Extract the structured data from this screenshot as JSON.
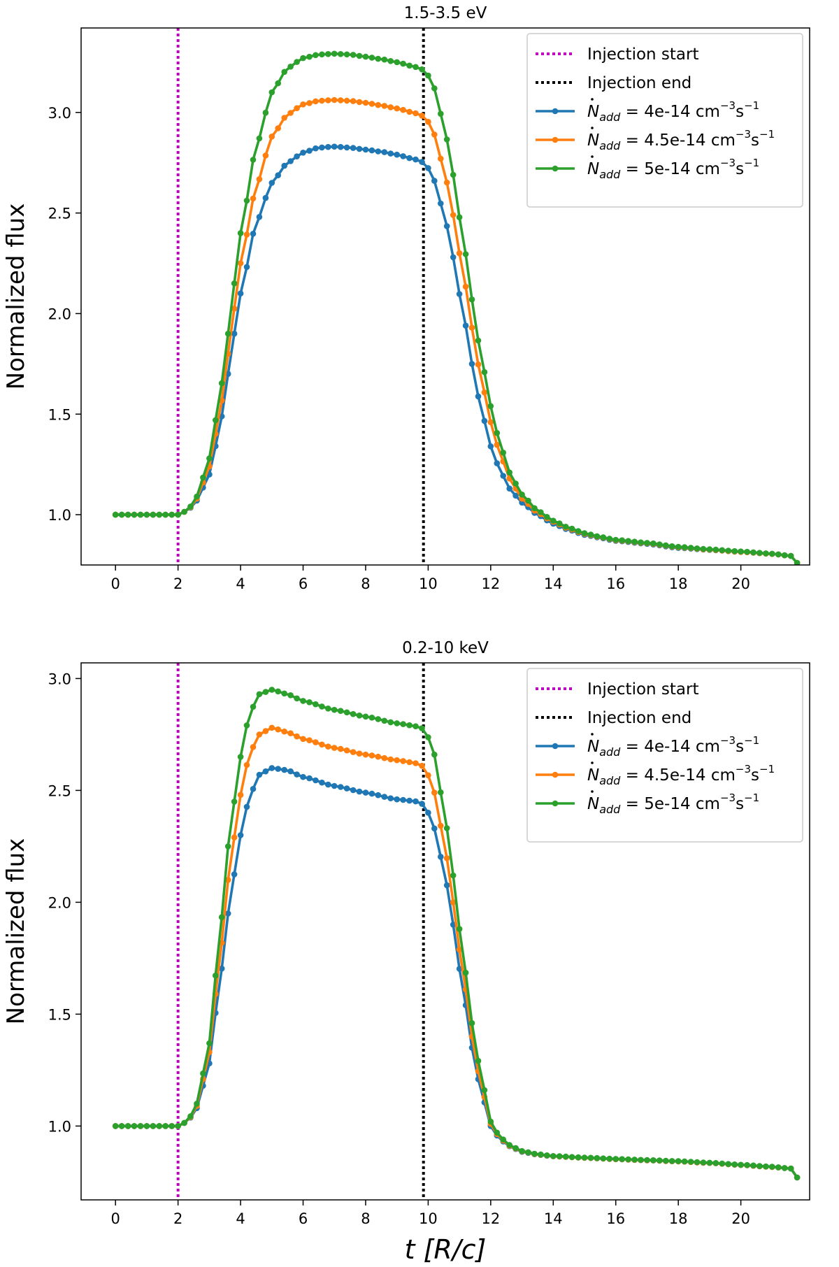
{
  "chart_data": [
    {
      "type": "line",
      "title": "1.5-3.5 eV",
      "xlabel": "",
      "ylabel": "Normalized flux",
      "xlim": [
        -1.1,
        22.2
      ],
      "ylim": [
        0.75,
        3.42
      ],
      "xticks": [
        0,
        2,
        4,
        6,
        8,
        10,
        12,
        14,
        16,
        18,
        20
      ],
      "xtick_labels": [
        "0",
        "2",
        "4",
        "6",
        "8",
        "10",
        "12",
        "14",
        "16",
        "18",
        "20"
      ],
      "yticks": [
        1.0,
        1.5,
        2.0,
        2.5,
        3.0
      ],
      "ytick_labels": [
        "1.0",
        "1.5",
        "2.0",
        "2.5",
        "3.0"
      ],
      "vlines": [
        {
          "x": 2.0,
          "color": "#bf00bf",
          "label": "Injection start"
        },
        {
          "x": 9.85,
          "color": "#000000",
          "label": "Injection end"
        }
      ],
      "legend": {
        "position": "top-right",
        "entries": [
          {
            "label": "Injection start",
            "color": "#bf00bf",
            "style": "dotted"
          },
          {
            "label": "Injection end",
            "color": "#000000",
            "style": "dotted"
          },
          {
            "label": "Ṅadd = 4e-14 cm⁻³s⁻¹",
            "color": "#1f77b4",
            "style": "line-marker",
            "rate_prefix": "= ",
            "rate_value": "4e-14 cm",
            "rate_exp": "−3",
            "rate_unit": "s",
            "rate_unit_exp": "−1"
          },
          {
            "label": "Ṅadd = 4.5e-14 cm⁻³s⁻¹",
            "color": "#ff7f0e",
            "style": "line-marker",
            "rate_prefix": "= ",
            "rate_value": "4.5e-14 cm",
            "rate_exp": "−3",
            "rate_unit": "s",
            "rate_unit_exp": "−1"
          },
          {
            "label": "Ṅadd = 5e-14 cm⁻³s⁻¹",
            "color": "#2ca02c",
            "style": "line-marker",
            "rate_prefix": "= ",
            "rate_value": "5e-14 cm",
            "rate_exp": "−3",
            "rate_unit": "s",
            "rate_unit_exp": "−1"
          }
        ],
        "symbol_main": "N",
        "symbol_sub": "add"
      },
      "series": [
        {
          "name": "Ṅadd = 4e-14 cm⁻³s⁻¹",
          "color": "#1f77b4",
          "keypoints": {
            "x": [
              0,
              1.0,
              2.0,
              2.3,
              2.6,
              3.0,
              3.3,
              3.6,
              4.0,
              4.5,
              5.0,
              5.5,
              6.0,
              6.5,
              7.0,
              7.5,
              8.0,
              8.5,
              9.0,
              9.5,
              9.9,
              10.2,
              10.5,
              10.8,
              11.1,
              11.4,
              11.7,
              12.0,
              12.3,
              12.6,
              13.0,
              13.5,
              14.0,
              14.5,
              15.0,
              15.5,
              16.0,
              17.0,
              18.0,
              19.0,
              20.0,
              21.0,
              21.6,
              21.8
            ],
            "y": [
              1.0,
              1.0,
              1.0,
              1.02,
              1.07,
              1.2,
              1.4,
              1.7,
              2.1,
              2.45,
              2.65,
              2.75,
              2.8,
              2.825,
              2.83,
              2.825,
              2.815,
              2.805,
              2.79,
              2.77,
              2.75,
              2.66,
              2.5,
              2.28,
              2.02,
              1.75,
              1.52,
              1.34,
              1.22,
              1.13,
              1.06,
              1.0,
              0.955,
              0.925,
              0.9,
              0.885,
              0.87,
              0.855,
              0.835,
              0.825,
              0.815,
              0.805,
              0.795,
              0.76
            ]
          }
        },
        {
          "name": "Ṅadd = 4.5e-14 cm⁻³s⁻¹",
          "color": "#ff7f0e",
          "keypoints": {
            "x": [
              0,
              1.0,
              2.0,
              2.3,
              2.6,
              3.0,
              3.3,
              3.6,
              4.0,
              4.5,
              5.0,
              5.5,
              6.0,
              6.5,
              7.0,
              7.5,
              8.0,
              8.5,
              9.0,
              9.5,
              9.9,
              10.2,
              10.5,
              10.8,
              11.1,
              11.4,
              11.7,
              12.0,
              12.3,
              12.6,
              13.0,
              13.5,
              14.0,
              14.5,
              15.0,
              15.5,
              16.0,
              17.0,
              18.0,
              19.0,
              20.0,
              21.0,
              21.6,
              21.8
            ],
            "y": [
              1.0,
              1.0,
              1.0,
              1.02,
              1.08,
              1.24,
              1.47,
              1.8,
              2.25,
              2.63,
              2.88,
              2.99,
              3.04,
              3.058,
              3.062,
              3.058,
              3.048,
              3.035,
              3.02,
              3.0,
              2.98,
              2.89,
              2.72,
              2.49,
              2.22,
              1.93,
              1.67,
              1.46,
              1.3,
              1.18,
              1.08,
              1.01,
              0.965,
              0.93,
              0.905,
              0.888,
              0.873,
              0.858,
              0.838,
              0.826,
              0.815,
              0.805,
              0.795,
              0.76
            ]
          }
        },
        {
          "name": "Ṅadd = 5e-14 cm⁻³s⁻¹",
          "color": "#2ca02c",
          "keypoints": {
            "x": [
              0,
              1.0,
              2.0,
              2.3,
              2.6,
              3.0,
              3.3,
              3.6,
              4.0,
              4.5,
              5.0,
              5.5,
              6.0,
              6.5,
              7.0,
              7.5,
              8.0,
              8.5,
              9.0,
              9.5,
              9.9,
              10.2,
              10.5,
              10.8,
              11.1,
              11.4,
              11.7,
              12.0,
              12.3,
              12.6,
              13.0,
              13.5,
              14.0,
              14.5,
              15.0,
              15.5,
              16.0,
              17.0,
              18.0,
              19.0,
              20.0,
              21.0,
              21.6,
              21.8
            ],
            "y": [
              1.0,
              1.0,
              1.0,
              1.02,
              1.09,
              1.28,
              1.55,
              1.9,
              2.4,
              2.83,
              3.1,
              3.22,
              3.27,
              3.288,
              3.292,
              3.288,
              3.277,
              3.265,
              3.25,
              3.23,
              3.21,
              3.12,
              2.94,
              2.69,
              2.39,
              2.07,
              1.78,
              1.54,
              1.35,
              1.21,
              1.1,
              1.02,
              0.97,
              0.935,
              0.908,
              0.89,
              0.875,
              0.86,
              0.84,
              0.828,
              0.817,
              0.806,
              0.795,
              0.76
            ]
          }
        }
      ]
    },
    {
      "type": "line",
      "title": "0.2-10 keV",
      "xlabel": "t [R/c]",
      "ylabel": "Normalized flux",
      "xlim": [
        -1.1,
        22.2
      ],
      "ylim": [
        0.67,
        3.07
      ],
      "xticks": [
        0,
        2,
        4,
        6,
        8,
        10,
        12,
        14,
        16,
        18,
        20
      ],
      "xtick_labels": [
        "0",
        "2",
        "4",
        "6",
        "8",
        "10",
        "12",
        "14",
        "16",
        "18",
        "20"
      ],
      "yticks": [
        1.0,
        1.5,
        2.0,
        2.5,
        3.0
      ],
      "ytick_labels": [
        "1.0",
        "1.5",
        "2.0",
        "2.5",
        "3.0"
      ],
      "vlines": [
        {
          "x": 2.0,
          "color": "#bf00bf",
          "label": "Injection start"
        },
        {
          "x": 9.85,
          "color": "#000000",
          "label": "Injection end"
        }
      ],
      "legend": {
        "position": "top-right",
        "entries": [
          {
            "label": "Injection start",
            "color": "#bf00bf",
            "style": "dotted"
          },
          {
            "label": "Injection end",
            "color": "#000000",
            "style": "dotted"
          },
          {
            "label": "Ṅadd = 4e-14 cm⁻³s⁻¹",
            "color": "#1f77b4",
            "style": "line-marker",
            "rate_prefix": "= ",
            "rate_value": "4e-14 cm",
            "rate_exp": "−3",
            "rate_unit": "s",
            "rate_unit_exp": "−1"
          },
          {
            "label": "Ṅadd = 4.5e-14 cm⁻³s⁻¹",
            "color": "#ff7f0e",
            "style": "line-marker",
            "rate_prefix": "= ",
            "rate_value": "4.5e-14 cm",
            "rate_exp": "−3",
            "rate_unit": "s",
            "rate_unit_exp": "−1"
          },
          {
            "label": "Ṅadd = 5e-14 cm⁻³s⁻¹",
            "color": "#2ca02c",
            "style": "line-marker",
            "rate_prefix": "= ",
            "rate_value": "5e-14 cm",
            "rate_exp": "−3",
            "rate_unit": "s",
            "rate_unit_exp": "−1"
          }
        ],
        "symbol_main": "N",
        "symbol_sub": "add"
      },
      "series": [
        {
          "name": "Ṅadd = 4e-14 cm⁻³s⁻¹",
          "color": "#1f77b4",
          "keypoints": {
            "x": [
              0,
              1.0,
              2.0,
              2.3,
              2.6,
              3.0,
              3.3,
              3.6,
              4.0,
              4.3,
              4.6,
              5.0,
              5.5,
              6.0,
              7.0,
              8.0,
              9.0,
              9.7,
              9.9,
              10.2,
              10.5,
              10.8,
              11.1,
              11.4,
              11.7,
              12.0,
              12.3,
              12.6,
              13.0,
              13.5,
              14.0,
              15.0,
              16.0,
              17.0,
              18.0,
              19.0,
              20.0,
              21.0,
              21.6,
              21.8
            ],
            "y": [
              1.0,
              1.0,
              1.0,
              1.02,
              1.08,
              1.28,
              1.6,
              1.95,
              2.3,
              2.48,
              2.57,
              2.6,
              2.59,
              2.56,
              2.52,
              2.49,
              2.46,
              2.45,
              2.43,
              2.33,
              2.15,
              1.9,
              1.62,
              1.35,
              1.15,
              1.0,
              0.94,
              0.91,
              0.885,
              0.872,
              0.865,
              0.858,
              0.852,
              0.847,
              0.842,
              0.835,
              0.826,
              0.817,
              0.81,
              0.77
            ]
          }
        },
        {
          "name": "Ṅadd = 4.5e-14 cm⁻³s⁻¹",
          "color": "#ff7f0e",
          "keypoints": {
            "x": [
              0,
              1.0,
              2.0,
              2.3,
              2.6,
              3.0,
              3.3,
              3.6,
              4.0,
              4.3,
              4.6,
              5.0,
              5.5,
              6.0,
              7.0,
              8.0,
              9.0,
              9.7,
              9.9,
              10.2,
              10.5,
              10.8,
              11.1,
              11.4,
              11.7,
              12.0,
              12.3,
              12.6,
              13.0,
              13.5,
              14.0,
              15.0,
              16.0,
              17.0,
              18.0,
              19.0,
              20.0,
              21.0,
              21.6,
              21.8
            ],
            "y": [
              1.0,
              1.0,
              1.0,
              1.02,
              1.09,
              1.33,
              1.7,
              2.1,
              2.48,
              2.67,
              2.75,
              2.78,
              2.76,
              2.73,
              2.69,
              2.66,
              2.635,
              2.62,
              2.6,
              2.49,
              2.28,
              2.0,
              1.7,
              1.4,
              1.18,
              1.01,
              0.945,
              0.912,
              0.887,
              0.873,
              0.865,
              0.858,
              0.852,
              0.847,
              0.842,
              0.835,
              0.826,
              0.817,
              0.81,
              0.77
            ]
          }
        },
        {
          "name": "Ṅadd = 5e-14 cm⁻³s⁻¹",
          "color": "#2ca02c",
          "keypoints": {
            "x": [
              0,
              1.0,
              2.0,
              2.3,
              2.6,
              3.0,
              3.3,
              3.6,
              4.0,
              4.3,
              4.6,
              5.0,
              5.5,
              6.0,
              7.0,
              8.0,
              9.0,
              9.7,
              9.9,
              10.2,
              10.5,
              10.8,
              11.1,
              11.4,
              11.7,
              12.0,
              12.3,
              12.6,
              13.0,
              13.5,
              14.0,
              15.0,
              16.0,
              17.0,
              18.0,
              19.0,
              20.0,
              21.0,
              21.6,
              21.8
            ],
            "y": [
              1.0,
              1.0,
              1.0,
              1.02,
              1.1,
              1.37,
              1.8,
              2.25,
              2.65,
              2.85,
              2.93,
              2.95,
              2.93,
              2.9,
              2.86,
              2.83,
              2.8,
              2.785,
              2.77,
              2.66,
              2.42,
              2.12,
              1.78,
              1.46,
              1.22,
              1.02,
              0.95,
              0.915,
              0.888,
              0.874,
              0.866,
              0.859,
              0.853,
              0.848,
              0.843,
              0.836,
              0.827,
              0.818,
              0.81,
              0.77
            ]
          }
        }
      ]
    }
  ]
}
